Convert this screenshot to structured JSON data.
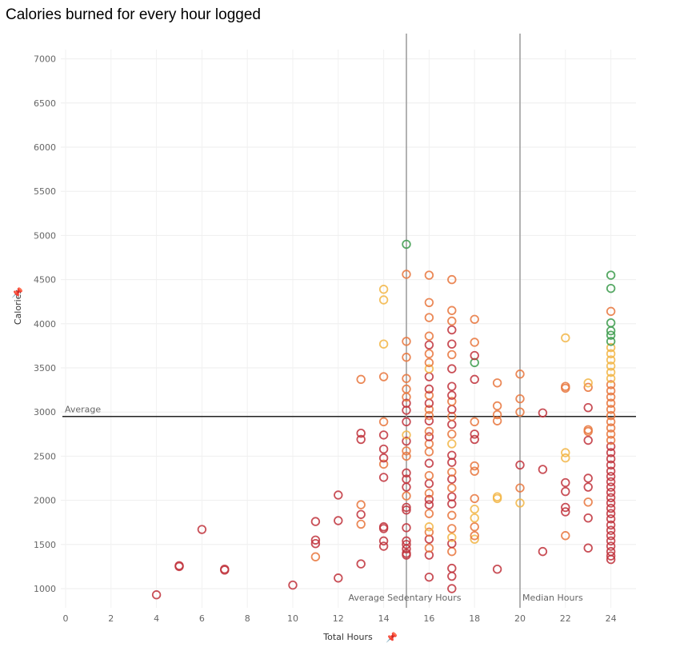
{
  "chart_data": {
    "type": "scatter",
    "title": "Calories burned for every hour logged",
    "xlabel": "Total Hours",
    "ylabel": "Calories",
    "xlim": [
      0,
      25
    ],
    "ylim": [
      850,
      7300
    ],
    "x_ticks": [
      0,
      2,
      4,
      6,
      8,
      10,
      12,
      14,
      16,
      18,
      20,
      22,
      24
    ],
    "y_ticks": [
      1000,
      1500,
      2000,
      2500,
      3000,
      3500,
      4000,
      4500,
      5000,
      5500,
      6000,
      6500,
      7000
    ],
    "grid": true,
    "marker": "hollow-circle",
    "reference_lines": [
      {
        "axis": "y",
        "value": 2950,
        "label": "Average",
        "color": "#222222"
      },
      {
        "axis": "x",
        "value": 15,
        "label": "Average Sedentary Hours",
        "color": "#999999"
      },
      {
        "axis": "x",
        "value": 20,
        "label": "Median Hours",
        "color": "#999999"
      }
    ],
    "colors": {
      "low": "#c0303a",
      "mid": "#e8743b",
      "high": "#f2b544",
      "top": "#3a9a4a"
    },
    "points": [
      [
        4,
        930,
        "low"
      ],
      [
        5,
        1250,
        "low"
      ],
      [
        5,
        1260,
        "low"
      ],
      [
        6,
        1670,
        "low"
      ],
      [
        7,
        1210,
        "low"
      ],
      [
        7,
        1220,
        "low"
      ],
      [
        10,
        1040,
        "low"
      ],
      [
        11,
        1360,
        "mid"
      ],
      [
        11,
        1510,
        "low"
      ],
      [
        11,
        1550,
        "low"
      ],
      [
        11,
        1760,
        "low"
      ],
      [
        12,
        1120,
        "low"
      ],
      [
        12,
        1770,
        "low"
      ],
      [
        12,
        2060,
        "low"
      ],
      [
        13,
        1280,
        "low"
      ],
      [
        13,
        1730,
        "mid"
      ],
      [
        13,
        1840,
        "low"
      ],
      [
        13,
        1950,
        "mid"
      ],
      [
        13,
        2690,
        "low"
      ],
      [
        13,
        2760,
        "low"
      ],
      [
        13,
        3370,
        "mid"
      ],
      [
        14,
        1480,
        "low"
      ],
      [
        14,
        1540,
        "low"
      ],
      [
        14,
        1680,
        "low"
      ],
      [
        14,
        1700,
        "low"
      ],
      [
        14,
        2260,
        "low"
      ],
      [
        14,
        2410,
        "mid"
      ],
      [
        14,
        2480,
        "low"
      ],
      [
        14,
        2580,
        "low"
      ],
      [
        14,
        2740,
        "low"
      ],
      [
        14,
        2890,
        "mid"
      ],
      [
        14,
        3400,
        "mid"
      ],
      [
        14,
        3770,
        "high"
      ],
      [
        14,
        4270,
        "high"
      ],
      [
        14,
        4390,
        "high"
      ],
      [
        15,
        1380,
        "low"
      ],
      [
        15,
        1400,
        "low"
      ],
      [
        15,
        1450,
        "low"
      ],
      [
        15,
        1500,
        "low"
      ],
      [
        15,
        1540,
        "low"
      ],
      [
        15,
        1690,
        "low"
      ],
      [
        15,
        1890,
        "low"
      ],
      [
        15,
        1920,
        "low"
      ],
      [
        15,
        2050,
        "mid"
      ],
      [
        15,
        2150,
        "low"
      ],
      [
        15,
        2240,
        "low"
      ],
      [
        15,
        2310,
        "low"
      ],
      [
        15,
        2500,
        "mid"
      ],
      [
        15,
        2560,
        "mid"
      ],
      [
        15,
        2670,
        "low"
      ],
      [
        15,
        2740,
        "high"
      ],
      [
        15,
        2890,
        "low"
      ],
      [
        15,
        3020,
        "low"
      ],
      [
        15,
        3100,
        "low"
      ],
      [
        15,
        3170,
        "mid"
      ],
      [
        15,
        3260,
        "mid"
      ],
      [
        15,
        3380,
        "mid"
      ],
      [
        15,
        3620,
        "mid"
      ],
      [
        15,
        3800,
        "mid"
      ],
      [
        15,
        4560,
        "mid"
      ],
      [
        15,
        4900,
        "top"
      ],
      [
        16,
        1130,
        "low"
      ],
      [
        16,
        1380,
        "low"
      ],
      [
        16,
        1460,
        "mid"
      ],
      [
        16,
        1560,
        "low"
      ],
      [
        16,
        1640,
        "mid"
      ],
      [
        16,
        1700,
        "high"
      ],
      [
        16,
        1850,
        "mid"
      ],
      [
        16,
        1950,
        "low"
      ],
      [
        16,
        2010,
        "low"
      ],
      [
        16,
        2080,
        "mid"
      ],
      [
        16,
        2190,
        "low"
      ],
      [
        16,
        2280,
        "mid"
      ],
      [
        16,
        2420,
        "low"
      ],
      [
        16,
        2550,
        "mid"
      ],
      [
        16,
        2640,
        "mid"
      ],
      [
        16,
        2720,
        "low"
      ],
      [
        16,
        2780,
        "mid"
      ],
      [
        16,
        2900,
        "low"
      ],
      [
        16,
        2960,
        "mid"
      ],
      [
        16,
        3030,
        "mid"
      ],
      [
        16,
        3100,
        "low"
      ],
      [
        16,
        3190,
        "mid"
      ],
      [
        16,
        3260,
        "low"
      ],
      [
        16,
        3400,
        "low"
      ],
      [
        16,
        3490,
        "high"
      ],
      [
        16,
        3560,
        "mid"
      ],
      [
        16,
        3660,
        "mid"
      ],
      [
        16,
        3760,
        "low"
      ],
      [
        16,
        3860,
        "mid"
      ],
      [
        16,
        4070,
        "mid"
      ],
      [
        16,
        4240,
        "mid"
      ],
      [
        16,
        4550,
        "mid"
      ],
      [
        17,
        1000,
        "low"
      ],
      [
        17,
        1140,
        "low"
      ],
      [
        17,
        1230,
        "low"
      ],
      [
        17,
        1420,
        "mid"
      ],
      [
        17,
        1510,
        "low"
      ],
      [
        17,
        1580,
        "high"
      ],
      [
        17,
        1680,
        "mid"
      ],
      [
        17,
        1830,
        "mid"
      ],
      [
        17,
        1960,
        "low"
      ],
      [
        17,
        2040,
        "low"
      ],
      [
        17,
        2140,
        "mid"
      ],
      [
        17,
        2240,
        "low"
      ],
      [
        17,
        2320,
        "mid"
      ],
      [
        17,
        2430,
        "low"
      ],
      [
        17,
        2510,
        "low"
      ],
      [
        17,
        2640,
        "high"
      ],
      [
        17,
        2750,
        "mid"
      ],
      [
        17,
        2860,
        "low"
      ],
      [
        17,
        2950,
        "mid"
      ],
      [
        17,
        3030,
        "low"
      ],
      [
        17,
        3120,
        "mid"
      ],
      [
        17,
        3190,
        "low"
      ],
      [
        17,
        3290,
        "low"
      ],
      [
        17,
        3490,
        "low"
      ],
      [
        17,
        3650,
        "mid"
      ],
      [
        17,
        3770,
        "low"
      ],
      [
        17,
        3930,
        "low"
      ],
      [
        17,
        4030,
        "mid"
      ],
      [
        17,
        4150,
        "mid"
      ],
      [
        17,
        4500,
        "mid"
      ],
      [
        18,
        1560,
        "high"
      ],
      [
        18,
        1600,
        "mid"
      ],
      [
        18,
        1700,
        "mid"
      ],
      [
        18,
        1800,
        "high"
      ],
      [
        18,
        1900,
        "high"
      ],
      [
        18,
        2020,
        "mid"
      ],
      [
        18,
        2330,
        "mid"
      ],
      [
        18,
        2390,
        "mid"
      ],
      [
        18,
        2690,
        "low"
      ],
      [
        18,
        2750,
        "low"
      ],
      [
        18,
        2890,
        "mid"
      ],
      [
        18,
        3370,
        "low"
      ],
      [
        18,
        3560,
        "top"
      ],
      [
        18,
        3640,
        "low"
      ],
      [
        18,
        3790,
        "mid"
      ],
      [
        18,
        4050,
        "mid"
      ],
      [
        19,
        1220,
        "low"
      ],
      [
        19,
        2020,
        "high"
      ],
      [
        19,
        2040,
        "high"
      ],
      [
        19,
        2900,
        "mid"
      ],
      [
        19,
        2970,
        "mid"
      ],
      [
        19,
        3070,
        "mid"
      ],
      [
        19,
        3330,
        "mid"
      ],
      [
        20,
        1970,
        "high"
      ],
      [
        20,
        2140,
        "mid"
      ],
      [
        20,
        2400,
        "low"
      ],
      [
        20,
        3000,
        "mid"
      ],
      [
        20,
        3150,
        "mid"
      ],
      [
        20,
        3430,
        "mid"
      ],
      [
        21,
        1420,
        "low"
      ],
      [
        21,
        2350,
        "low"
      ],
      [
        21,
        2990,
        "low"
      ],
      [
        22,
        1600,
        "mid"
      ],
      [
        22,
        1870,
        "low"
      ],
      [
        22,
        1920,
        "low"
      ],
      [
        22,
        2100,
        "low"
      ],
      [
        22,
        2200,
        "low"
      ],
      [
        22,
        2480,
        "high"
      ],
      [
        22,
        2540,
        "high"
      ],
      [
        22,
        3270,
        "mid"
      ],
      [
        22,
        3290,
        "mid"
      ],
      [
        22,
        3840,
        "high"
      ],
      [
        23,
        1460,
        "low"
      ],
      [
        23,
        1800,
        "low"
      ],
      [
        23,
        1980,
        "mid"
      ],
      [
        23,
        2150,
        "low"
      ],
      [
        23,
        2250,
        "low"
      ],
      [
        23,
        2680,
        "low"
      ],
      [
        23,
        2780,
        "mid"
      ],
      [
        23,
        2800,
        "mid"
      ],
      [
        23,
        3050,
        "low"
      ],
      [
        23,
        3280,
        "mid"
      ],
      [
        23,
        3330,
        "high"
      ],
      [
        24,
        1330,
        "low"
      ],
      [
        24,
        1370,
        "low"
      ],
      [
        24,
        1420,
        "low"
      ],
      [
        24,
        1480,
        "low"
      ],
      [
        24,
        1540,
        "low"
      ],
      [
        24,
        1600,
        "low"
      ],
      [
        24,
        1660,
        "low"
      ],
      [
        24,
        1720,
        "low"
      ],
      [
        24,
        1790,
        "low"
      ],
      [
        24,
        1850,
        "low"
      ],
      [
        24,
        1910,
        "low"
      ],
      [
        24,
        1970,
        "low"
      ],
      [
        24,
        2030,
        "low"
      ],
      [
        24,
        2090,
        "low"
      ],
      [
        24,
        2150,
        "low"
      ],
      [
        24,
        2210,
        "low"
      ],
      [
        24,
        2270,
        "low"
      ],
      [
        24,
        2330,
        "low"
      ],
      [
        24,
        2400,
        "low"
      ],
      [
        24,
        2470,
        "low"
      ],
      [
        24,
        2540,
        "low"
      ],
      [
        24,
        2610,
        "low"
      ],
      [
        24,
        2680,
        "mid"
      ],
      [
        24,
        2750,
        "mid"
      ],
      [
        24,
        2820,
        "mid"
      ],
      [
        24,
        2890,
        "mid"
      ],
      [
        24,
        2960,
        "mid"
      ],
      [
        24,
        3030,
        "mid"
      ],
      [
        24,
        3100,
        "mid"
      ],
      [
        24,
        3170,
        "mid"
      ],
      [
        24,
        3240,
        "mid"
      ],
      [
        24,
        3310,
        "mid"
      ],
      [
        24,
        3380,
        "high"
      ],
      [
        24,
        3450,
        "high"
      ],
      [
        24,
        3520,
        "high"
      ],
      [
        24,
        3590,
        "high"
      ],
      [
        24,
        3660,
        "high"
      ],
      [
        24,
        3730,
        "high"
      ],
      [
        24,
        3800,
        "top"
      ],
      [
        24,
        3870,
        "top"
      ],
      [
        24,
        3920,
        "top"
      ],
      [
        24,
        4010,
        "top"
      ],
      [
        24,
        4140,
        "mid"
      ],
      [
        24,
        4400,
        "top"
      ],
      [
        24,
        4550,
        "top"
      ]
    ]
  }
}
